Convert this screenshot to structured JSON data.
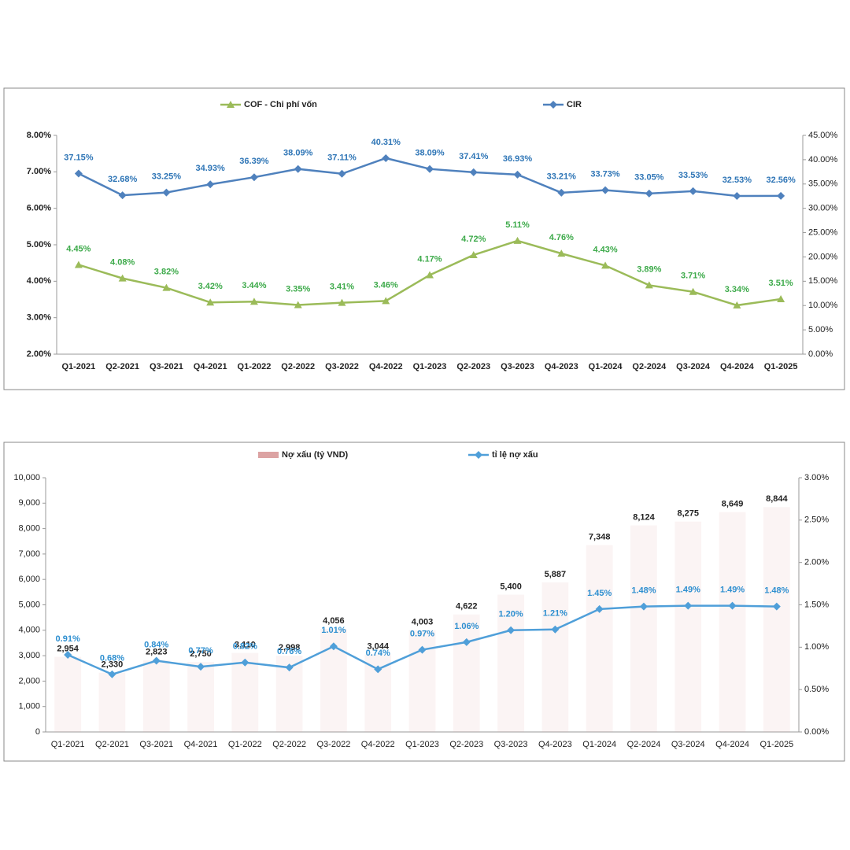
{
  "chart_data": [
    {
      "type": "line",
      "categories": [
        "Q1-2021",
        "Q2-2021",
        "Q3-2021",
        "Q4-2021",
        "Q1-2022",
        "Q2-2022",
        "Q3-2022",
        "Q4-2022",
        "Q1-2023",
        "Q2-2023",
        "Q3-2023",
        "Q4-2023",
        "Q1-2024",
        "Q2-2024",
        "Q3-2024",
        "Q4-2024",
        "Q1-2025"
      ],
      "series": [
        {
          "name": "COF - Chi phí vốn",
          "color": "#9bbb59",
          "marker": "triangle",
          "axis": "y",
          "values": [
            4.45,
            4.08,
            3.82,
            3.42,
            3.44,
            3.35,
            3.41,
            3.46,
            4.17,
            4.72,
            5.11,
            4.76,
            4.43,
            3.89,
            3.71,
            3.34,
            3.51
          ],
          "value_labels": [
            "4.45%",
            "4.08%",
            "3.82%",
            "3.42%",
            "3.44%",
            "3.35%",
            "3.41%",
            "3.46%",
            "4.17%",
            "4.72%",
            "5.11%",
            "4.76%",
            "4.43%",
            "3.89%",
            "3.71%",
            "3.34%",
            "3.51%"
          ]
        },
        {
          "name": "CIR",
          "color": "#4f81bd",
          "marker": "diamond",
          "axis": "y2",
          "values": [
            37.15,
            32.68,
            33.25,
            34.93,
            36.39,
            38.09,
            37.11,
            40.31,
            38.09,
            37.41,
            36.93,
            33.21,
            33.73,
            33.05,
            33.53,
            32.53,
            32.56
          ],
          "value_labels": [
            "37.15%",
            "32.68%",
            "33.25%",
            "34.93%",
            "36.39%",
            "38.09%",
            "37.11%",
            "40.31%",
            "38.09%",
            "37.41%",
            "36.93%",
            "33.21%",
            "33.73%",
            "33.05%",
            "33.53%",
            "32.53%",
            "32.56%"
          ]
        }
      ],
      "ylim": [
        2,
        8
      ],
      "yticks": [
        {
          "value": 2,
          "label": "2.00%"
        },
        {
          "value": 3,
          "label": "3.00%"
        },
        {
          "value": 4,
          "label": "4.00%"
        },
        {
          "value": 5,
          "label": "5.00%"
        },
        {
          "value": 6,
          "label": "6.00%"
        },
        {
          "value": 7,
          "label": "7.00%"
        },
        {
          "value": 8,
          "label": "8.00%"
        }
      ],
      "y2lim": [
        0,
        45
      ],
      "y2ticks": [
        {
          "value": 0,
          "label": "0.00%"
        },
        {
          "value": 5,
          "label": "5.00%"
        },
        {
          "value": 10,
          "label": "10.00%"
        },
        {
          "value": 15,
          "label": "15.00%"
        },
        {
          "value": 20,
          "label": "20.00%"
        },
        {
          "value": 25,
          "label": "25.00%"
        },
        {
          "value": 30,
          "label": "30.00%"
        },
        {
          "value": 35,
          "label": "35.00%"
        },
        {
          "value": 40,
          "label": "40.00%"
        },
        {
          "value": 45,
          "label": "45.00%"
        }
      ],
      "grid": false
    },
    {
      "type": "combo",
      "categories": [
        "Q1-2021",
        "Q2-2021",
        "Q3-2021",
        "Q4-2021",
        "Q1-2022",
        "Q2-2022",
        "Q3-2022",
        "Q4-2022",
        "Q1-2023",
        "Q2-2023",
        "Q3-2023",
        "Q4-2023",
        "Q1-2024",
        "Q2-2024",
        "Q3-2024",
        "Q4-2024",
        "Q1-2025"
      ],
      "series": [
        {
          "name": "Nợ xấu (tỷ VND)",
          "color": "#dca3a3",
          "type": "bar",
          "axis": "y",
          "values": [
            2954,
            2330,
            2823,
            2750,
            3110,
            2998,
            4056,
            3044,
            4003,
            4622,
            5400,
            5887,
            7348,
            8124,
            8275,
            8649,
            8844
          ],
          "value_labels": [
            "2,954",
            "2,330",
            "2,823",
            "2,750",
            "3,110",
            "2,998",
            "4,056",
            "3,044",
            "4,003",
            "4,622",
            "5,400",
            "5,887",
            "7,348",
            "8,124",
            "8,275",
            "8,649",
            "8,844"
          ]
        },
        {
          "name": "tỉ lệ nợ xấu",
          "color": "#4f9fd9",
          "type": "line",
          "marker": "diamond",
          "axis": "y2",
          "values": [
            0.91,
            0.68,
            0.84,
            0.77,
            0.82,
            0.76,
            1.01,
            0.74,
            0.97,
            1.06,
            1.2,
            1.21,
            1.45,
            1.48,
            1.49,
            1.49,
            1.48
          ],
          "value_labels": [
            "0.91%",
            "0.68%",
            "0.84%",
            "0.77%",
            "0.82%",
            "0.76%",
            "1.01%",
            "0.74%",
            "0.97%",
            "1.06%",
            "1.20%",
            "1.21%",
            "1.45%",
            "1.48%",
            "1.49%",
            "1.49%",
            "1.48%"
          ]
        }
      ],
      "ylim": [
        0,
        10000
      ],
      "yticks": [
        0,
        {
          "value": 1000,
          "label": "1,000"
        },
        {
          "value": 2000,
          "label": "2,000"
        },
        {
          "value": 3000,
          "label": "3,000"
        },
        {
          "value": 4000,
          "label": "4,000"
        },
        {
          "value": 5000,
          "label": "5,000"
        },
        {
          "value": 6000,
          "label": "6,000"
        },
        {
          "value": 7000,
          "label": "7,000"
        },
        {
          "value": 8000,
          "label": "8,000"
        },
        {
          "value": 9000,
          "label": "9,000"
        },
        {
          "value": 10000,
          "label": "10,000"
        }
      ],
      "y2lim": [
        0,
        3
      ],
      "y2ticks": [
        {
          "value": 0,
          "label": "0.00%"
        },
        {
          "value": 0.5,
          "label": "0.50%"
        },
        {
          "value": 1,
          "label": "1.00%"
        },
        {
          "value": 1.5,
          "label": "1.50%"
        },
        {
          "value": 2,
          "label": "2.00%"
        },
        {
          "value": 2.5,
          "label": "2.50%"
        },
        {
          "value": 3,
          "label": "3.00%"
        }
      ],
      "grid": false
    }
  ]
}
